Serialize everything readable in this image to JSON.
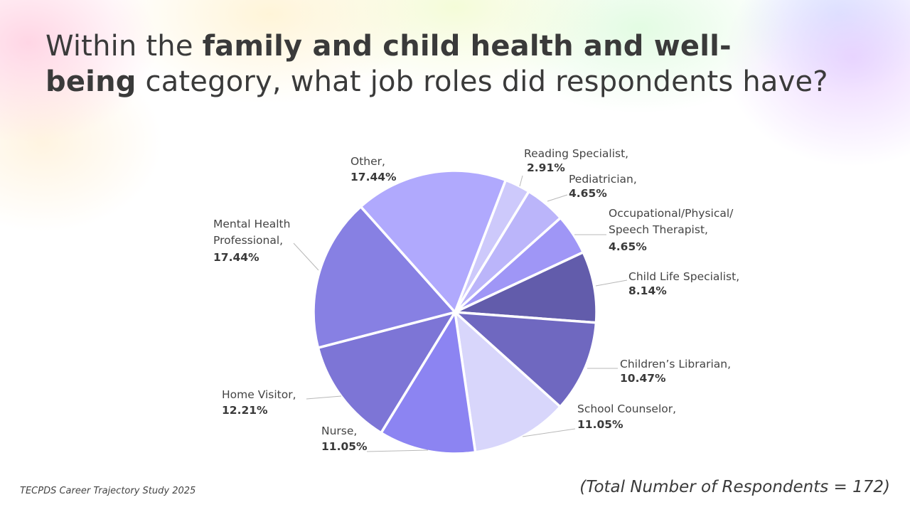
{
  "slide": {
    "title_parts": [
      {
        "text": "Within the ",
        "bold": false
      },
      {
        "text": "family and child health and well-",
        "bold": true
      },
      {
        "text": "being",
        "bold": true
      },
      {
        "text": " category, what job roles did respondents have?",
        "bold": false
      }
    ],
    "footer_left": "TECPDS Career Trajectory Study 2025",
    "footer_right": "(Total Number of Respondents = 172)"
  },
  "chart_data": {
    "type": "pie",
    "title": "Within the family and child health and well-being category, what job roles did respondents have?",
    "unit": "%",
    "total_respondents": 172,
    "slices": [
      {
        "label": "Reading Specialist,",
        "name": "Reading Specialist",
        "value": 2.91,
        "display": "2.91%",
        "color": "#cdc9fb"
      },
      {
        "label": "Pediatrician,",
        "name": "Pediatrician",
        "value": 4.65,
        "display": "4.65%",
        "color": "#bbb5fa"
      },
      {
        "label": "Occupational/Physical/ Speech Therapist,",
        "name": "Occupational/Physical/Speech Therapist",
        "value": 4.65,
        "display": "4.65%",
        "color": "#9f96f6"
      },
      {
        "label": "Child Life Specialist,",
        "name": "Child Life Specialist",
        "value": 8.14,
        "display": "8.14%",
        "color": "#625cab"
      },
      {
        "label": "Children’s Librarian,",
        "name": "Children’s Librarian",
        "value": 10.47,
        "display": "10.47%",
        "color": "#6f68c0"
      },
      {
        "label": "School Counselor,",
        "name": "School Counselor",
        "value": 11.05,
        "display": "11.05%",
        "color": "#d8d6fb"
      },
      {
        "label": "Nurse,",
        "name": "Nurse",
        "value": 11.05,
        "display": "11.05%",
        "color": "#8c84f2"
      },
      {
        "label": "Home Visitor,",
        "name": "Home Visitor",
        "value": 12.21,
        "display": "12.21%",
        "color": "#7d75d6"
      },
      {
        "label": "Mental Health Professional,",
        "name": "Mental Health Professional",
        "value": 17.44,
        "display": "17.44%",
        "color": "#8780e3"
      },
      {
        "label": "Other,",
        "name": "Other",
        "value": 17.44,
        "display": "17.44%",
        "color": "#b0a9fd"
      }
    ],
    "start_angle_deg": 21,
    "direction": "clockwise"
  }
}
